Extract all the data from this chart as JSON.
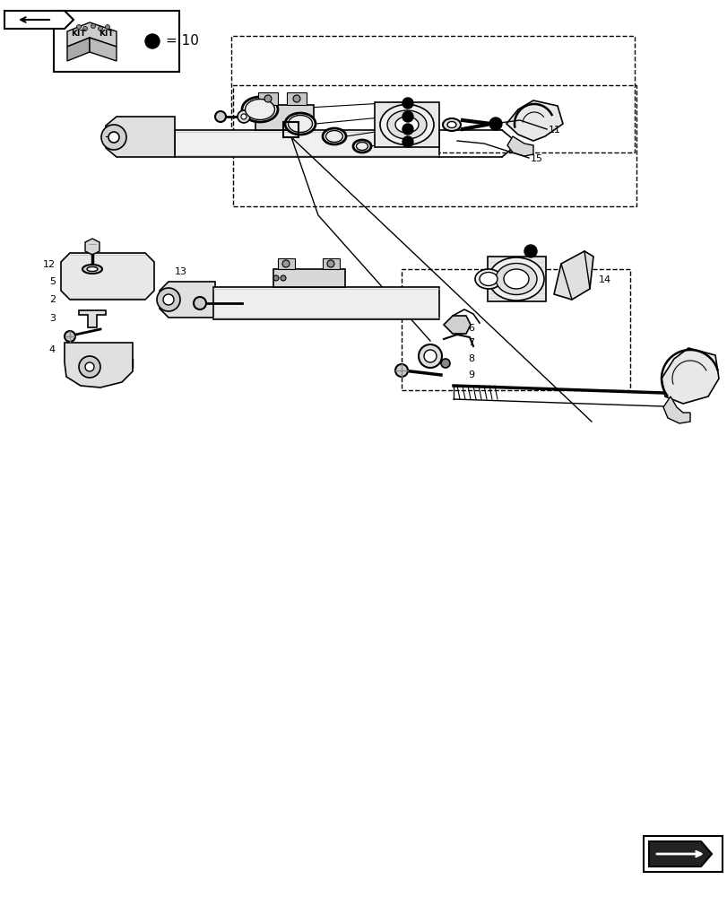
{
  "background_color": "#ffffff",
  "line_color": "#000000",
  "kit_text": "= 10",
  "bullet_color": "#000000"
}
